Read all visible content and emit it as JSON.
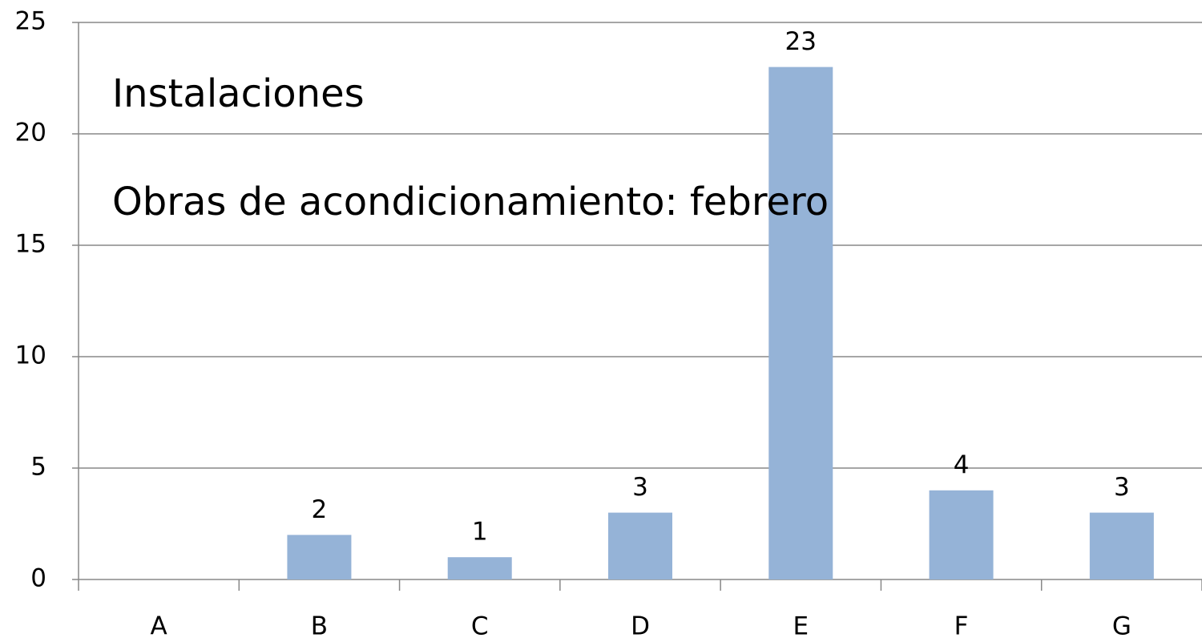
{
  "chart_data": {
    "type": "bar",
    "annotations": [
      "Instalaciones",
      "Obras de acondicionamiento: febrero"
    ],
    "categories": [
      "A",
      "B",
      "C",
      "D",
      "E",
      "F",
      "G"
    ],
    "values": [
      null,
      2,
      1,
      3,
      23,
      4,
      3
    ],
    "color": "#95b3d7",
    "ylim": [
      0,
      25
    ],
    "yticks": [
      0,
      5,
      10,
      15,
      20,
      25
    ],
    "grid": true
  }
}
